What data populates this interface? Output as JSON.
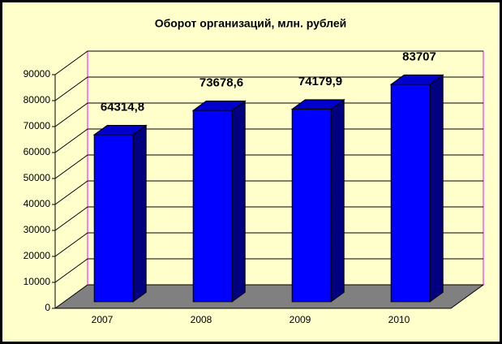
{
  "chart_data": {
    "type": "bar3d",
    "title": "Оборот организаций, млн. рублей",
    "categories": [
      "2007",
      "2008",
      "2009",
      "2010"
    ],
    "values": [
      64314.8,
      73678.6,
      74179.9,
      83707
    ],
    "value_labels": [
      "64314,8",
      "73678,6",
      "74179,9",
      "83707"
    ],
    "color": "#0000ff",
    "ylim": [
      0,
      90000
    ],
    "yticks": [
      0,
      10000,
      20000,
      30000,
      40000,
      50000,
      60000,
      70000,
      80000,
      90000
    ],
    "grid": true
  }
}
